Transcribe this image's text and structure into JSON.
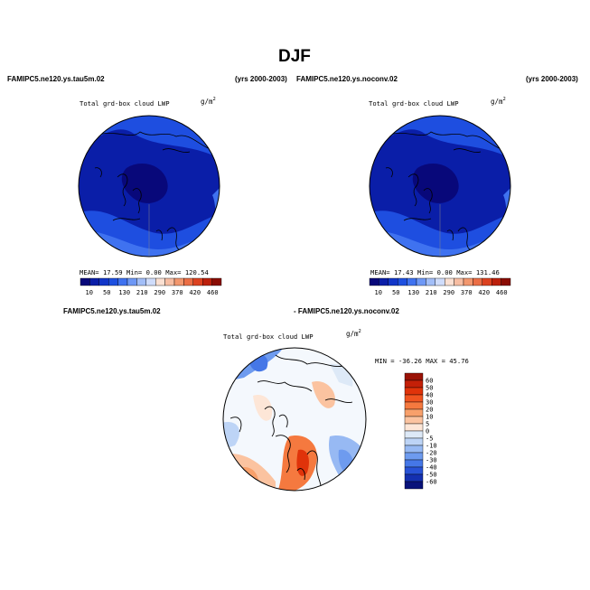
{
  "title": "DJF",
  "panel_left": {
    "case_label": "FAMIPC5.ne120.ys.tau5m.02",
    "years": "(yrs 2000-2003)",
    "field": "Total grd-box cloud LWP",
    "units_base": "g/m",
    "units_exp": "2",
    "stats": "MEAN=  17.59  Min=   0.00  Max= 120.54"
  },
  "panel_right": {
    "case_label": "FAMIPC5.ne120.ys.noconv.02",
    "years": "(yrs 2000-2003)",
    "field": "Total grd-box cloud LWP",
    "units_base": "g/m",
    "units_exp": "2",
    "stats": "MEAN=  17.43  Min=   0.00  Max= 131.46"
  },
  "panel_diff": {
    "case_a": "FAMIPC5.ne120.ys.tau5m.02",
    "case_b": "- FAMIPC5.ne120.ys.noconv.02",
    "field": "Total grd-box cloud LWP",
    "units_base": "g/m",
    "units_exp": "2",
    "minmax": "MIN =  -36.26  MAX =   45.76"
  },
  "colorbar_abs": {
    "labels": [
      "10",
      "50",
      "130",
      "210",
      "290",
      "370",
      "420",
      "460"
    ],
    "colors": [
      "#08087a",
      "#0a1ea8",
      "#1236c8",
      "#1e50e0",
      "#3f72f0",
      "#6e98f6",
      "#a2bef8",
      "#cfdcfb",
      "#fbe0d2",
      "#f7bda2",
      "#f2976e",
      "#eb6e45",
      "#dc4220",
      "#bc200c",
      "#8a0c04"
    ]
  },
  "colorbar_diff": {
    "labels": [
      "60",
      "50",
      "40",
      "30",
      "20",
      "10",
      "5",
      "0",
      "-5",
      "-10",
      "-20",
      "-30",
      "-40",
      "-50",
      "-60"
    ],
    "colors": [
      "#9a1206",
      "#c42008",
      "#e0330a",
      "#f05420",
      "#f5793f",
      "#f8a06b",
      "#fbc3a0",
      "#fde6d7",
      "#dde9f7",
      "#bdd4f6",
      "#97b9f3",
      "#6e9bef",
      "#4577e7",
      "#2852d6",
      "#1430b0",
      "#08127a"
    ]
  }
}
